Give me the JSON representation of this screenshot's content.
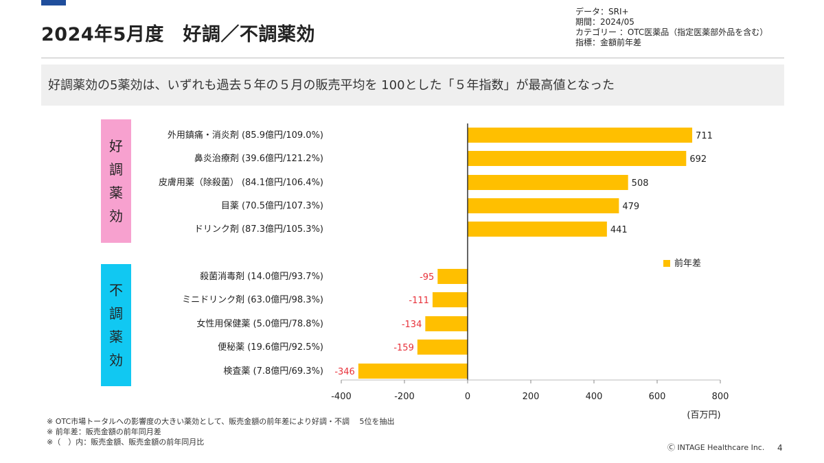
{
  "page": {
    "title": "2024年5月度　好調／不調薬効",
    "meta": [
      "データ：SRI+",
      "期間：2024/05",
      "カテゴリー ：OTC医薬品（指定医薬部外品を含む）",
      "指標：金額前年差"
    ],
    "headline": "好調薬効の5薬効は、いずれも過去５年の５月の販売平均を 100とした「５年指数」が最高値となった",
    "good_label": [
      "好",
      "調",
      "薬",
      "効"
    ],
    "bad_label": [
      "不",
      "調",
      "薬",
      "効"
    ],
    "notes": [
      "※ OTC市場トータルへの影響度の大きい薬効として、販売金額の前年差により好調・不調　 5位を抽出",
      "※ 前年差：販売金額の前年同月差",
      "※（　）内：販売金額、販売金額の前年同月比"
    ],
    "copyright": "Ⓒ INTAGE Healthcare Inc.",
    "page_number": "4"
  },
  "colors": {
    "bar": "#ffbf00",
    "negative_label": "#e8313a",
    "good_group": "#f7a1cf",
    "bad_group": "#11c8f2"
  },
  "chart_data": {
    "type": "bar",
    "orientation": "horizontal",
    "categories": [
      "外用鎮痛・消炎剤 (85.9億円/109.0%)",
      "鼻炎治療剤 (39.6億円/121.2%)",
      "皮膚用薬（除殺菌） (84.1億円/106.4%)",
      "目薬 (70.5億円/107.3%)",
      "ドリンク剤 (87.3億円/105.3%)",
      "殺菌消毒剤 (14.0億円/93.7%)",
      "ミニドリンク剤 (63.0億円/98.3%)",
      "女性用保健薬 (5.0億円/78.8%)",
      "便秘薬 (19.6億円/92.5%)",
      "検査薬 (7.8億円/69.3%)"
    ],
    "series": [
      {
        "name": "前年差",
        "values": [
          711,
          692,
          508,
          479,
          441,
          -95,
          -111,
          -134,
          -159,
          -346
        ]
      }
    ],
    "xlim": [
      -400,
      800
    ],
    "xticks": [
      -400,
      -200,
      0,
      200,
      400,
      600,
      800
    ],
    "unit_label": "(百万円)",
    "legend_position": "right",
    "grid": false
  }
}
